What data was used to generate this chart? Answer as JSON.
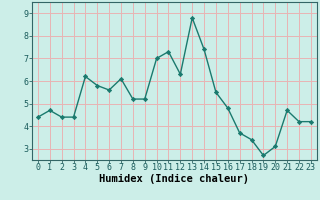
{
  "x": [
    0,
    1,
    2,
    3,
    4,
    5,
    6,
    7,
    8,
    9,
    10,
    11,
    12,
    13,
    14,
    15,
    16,
    17,
    18,
    19,
    20,
    21,
    22,
    23
  ],
  "y": [
    4.4,
    4.7,
    4.4,
    4.4,
    6.2,
    5.8,
    5.6,
    6.1,
    5.2,
    5.2,
    7.0,
    7.3,
    6.3,
    8.8,
    7.4,
    5.5,
    4.8,
    3.7,
    3.4,
    2.7,
    3.1,
    4.7,
    4.2,
    4.2
  ],
  "line_color": "#1a7a6e",
  "marker": "D",
  "marker_size": 2.2,
  "bg_color": "#cceee8",
  "plot_bg_color": "#cceee8",
  "grid_color": "#e8b4b4",
  "xlabel": "Humidex (Indice chaleur)",
  "ylim": [
    2.5,
    9.5
  ],
  "xlim": [
    -0.5,
    23.5
  ],
  "yticks": [
    3,
    4,
    5,
    6,
    7,
    8,
    9
  ],
  "xticks": [
    0,
    1,
    2,
    3,
    4,
    5,
    6,
    7,
    8,
    9,
    10,
    11,
    12,
    13,
    14,
    15,
    16,
    17,
    18,
    19,
    20,
    21,
    22,
    23
  ],
  "tick_fontsize": 6,
  "xlabel_fontsize": 7.5,
  "linewidth": 1.0
}
